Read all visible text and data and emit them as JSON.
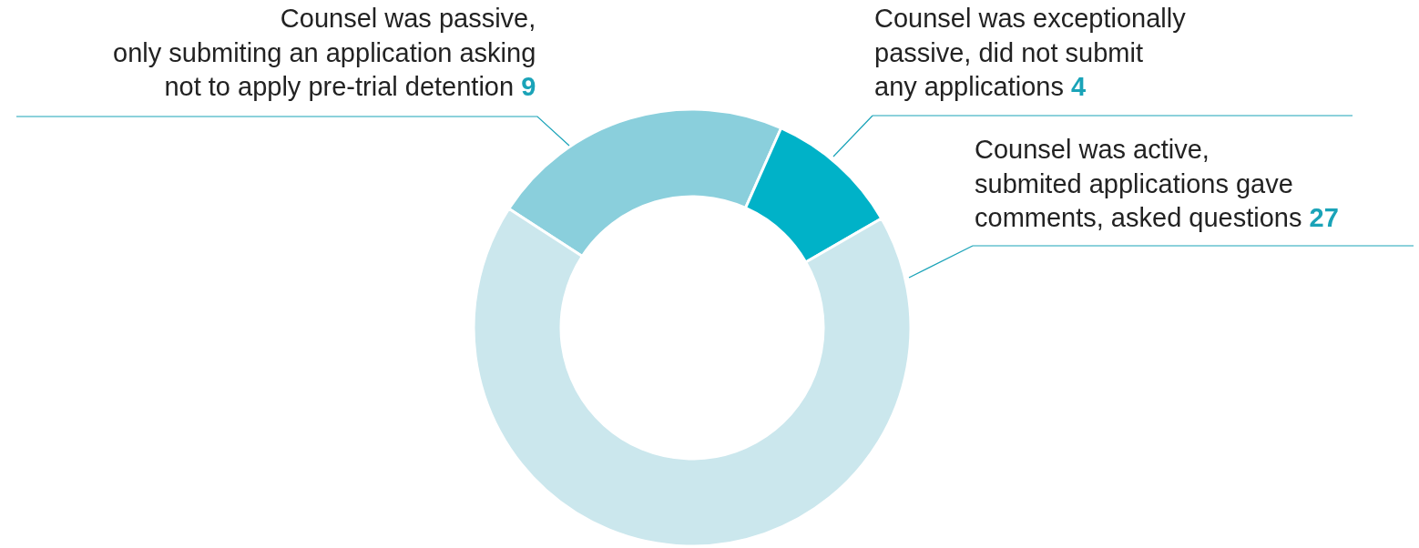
{
  "chart_data": {
    "type": "donut",
    "categories": [
      "Counsel was passive,\nonly submiting an application asking\nnot to apply pre-trial detention",
      "Counsel was exceptionally\npassive, did not submit\nany applications",
      "Counsel was active,\nsubmited applications gave\ncomments, asked questions"
    ],
    "values": [
      9,
      4,
      27
    ],
    "colors": [
      "#8acfdc",
      "#00b2c8",
      "#cbe7ed"
    ],
    "data_labels": true
  }
}
